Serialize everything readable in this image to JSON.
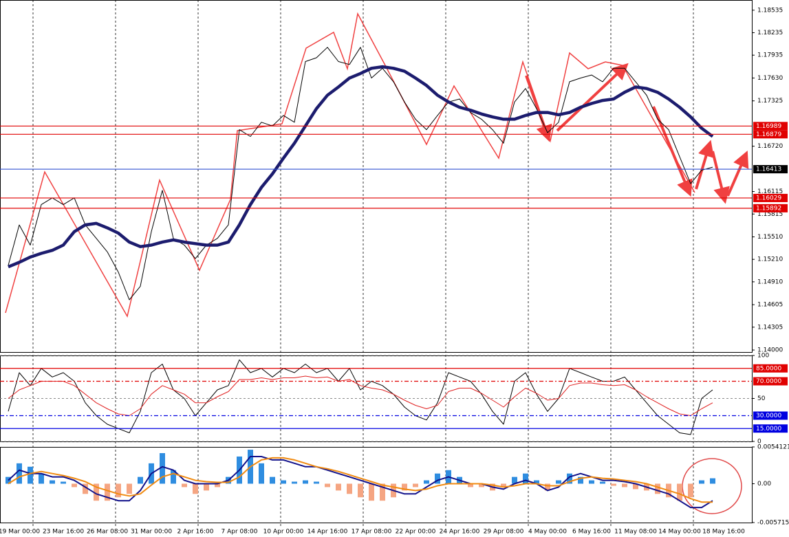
{
  "chart_data": [
    {
      "type": "line",
      "categories": [
        null,
        "19 Mar 00:00",
        null,
        null,
        null,
        "23 Mar 16:00",
        null,
        null,
        null,
        "26 Mar 08:00",
        null,
        null,
        null,
        "31 Mar 00:00",
        null,
        null,
        null,
        "2 Apr 16:00",
        null,
        null,
        null,
        "7 Apr 08:00",
        null,
        null,
        null,
        "10 Apr 00:00",
        null,
        null,
        null,
        "14 Apr 16:00",
        null,
        null,
        null,
        "17 Apr 08:00",
        null,
        null,
        null,
        "22 Apr 00:00",
        null,
        null,
        null,
        "24 Apr 16:00",
        null,
        null,
        null,
        "29 Apr 08:00",
        null,
        null,
        null,
        "4 May 00:00",
        null,
        null,
        null,
        "6 May 16:00",
        null,
        null,
        null,
        "11 May 08:00",
        null,
        null,
        null,
        "14 May 00:00",
        null,
        null,
        null,
        "18 May 16:00"
      ],
      "ylim": [
        1.13973,
        1.18671
      ],
      "yticks": [
        1.18535,
        1.18235,
        1.17935,
        {
          "value": 1.1763,
          "label": "1.17630"
        },
        1.17325,
        {
          "value": 1.1672,
          "label": "1.16720"
        },
        1.16115,
        1.15815,
        {
          "value": 1.1551,
          "label": "1.15510"
        },
        {
          "value": 1.1521,
          "label": "1.15210"
        },
        {
          "value": 1.1491,
          "label": "1.14910"
        },
        1.14605,
        1.14305,
        {
          "value": 1.14,
          "label": "1.14000"
        }
      ],
      "levels": [
        {
          "value": 1.16989,
          "color": "#e00000"
        },
        {
          "value": 1.16879,
          "color": "#e00000"
        },
        {
          "value": 1.16413,
          "color": "#3050d0",
          "label_color": "#000000"
        },
        {
          "value": 1.16029,
          "color": "#e00000"
        },
        {
          "value": 1.15892,
          "color": "#e00000"
        }
      ],
      "series": [
        {
          "color": "#000000",
          "values": [
            1.1513,
            1.1567,
            1.154,
            1.1594,
            1.1603,
            1.1594,
            1.1603,
            1.1567,
            1.1549,
            1.1531,
            1.1504,
            1.1467,
            1.1485,
            1.1558,
            1.1613,
            1.1549,
            1.154,
            1.1522,
            1.154,
            1.1549,
            1.1567,
            1.1694,
            1.1685,
            1.1704,
            1.1699,
            1.1713,
            1.1704,
            1.1785,
            1.179,
            1.1804,
            1.1785,
            1.1781,
            1.1804,
            1.1763,
            1.1776,
            1.1758,
            1.1731,
            1.1708,
            1.1694,
            1.1713,
            1.1731,
            1.1735,
            1.1717,
            1.1708,
            1.1694,
            1.1676,
            1.1731,
            1.1749,
            1.1722,
            1.169,
            1.1704,
            1.1758,
            1.1763,
            1.1767,
            1.1758,
            1.1776,
            1.1776,
            1.1758,
            1.174,
            1.1708,
            1.1694,
            1.1658,
            1.1622,
            1.164,
            1.1644,
            null
          ]
        },
        {
          "color": "#1c1c6e",
          "values": [
            1.1511,
            1.1517,
            1.1524,
            1.1529,
            1.1533,
            1.154,
            1.1558,
            1.1567,
            1.1569,
            1.1563,
            1.1556,
            1.1544,
            1.1538,
            1.154,
            1.1544,
            1.1547,
            1.1544,
            1.1542,
            1.154,
            1.154,
            1.1544,
            1.1567,
            1.1594,
            1.1617,
            1.1635,
            1.1656,
            1.1676,
            1.1699,
            1.1722,
            1.174,
            1.1751,
            1.1763,
            1.1769,
            1.1776,
            1.1778,
            1.1776,
            1.1772,
            1.1763,
            1.1753,
            1.174,
            1.1731,
            1.1724,
            1.172,
            1.1715,
            1.1711,
            1.1708,
            1.1708,
            1.1713,
            1.1717,
            1.1717,
            1.1714,
            1.1717,
            1.1724,
            1.1729,
            1.1733,
            1.1735,
            1.1744,
            1.1751,
            1.1749,
            1.1744,
            1.1735,
            1.1724,
            1.1711,
            1.1696,
            1.1685,
            null
          ]
        }
      ]
    },
    {
      "type": "line",
      "ylim": [
        0,
        100
      ],
      "yticks": [
        100,
        50,
        0
      ],
      "grid": true,
      "levels": [
        {
          "value": 85,
          "label": "85.0000",
          "color": "#e00000",
          "style": "solid"
        },
        {
          "value": 70,
          "label": "70.0000",
          "color": "#e00000",
          "style": "dashdot"
        },
        {
          "value": 30,
          "label": "30.0000",
          "color": "#0000e0",
          "style": "dashdot"
        },
        {
          "value": 15,
          "label": "15.0000",
          "color": "#0000e0",
          "style": "solid"
        }
      ],
      "series": [
        {
          "color": "#000000",
          "values": [
            35,
            80,
            65,
            85,
            75,
            80,
            70,
            45,
            30,
            20,
            15,
            10,
            35,
            80,
            90,
            60,
            50,
            30,
            45,
            60,
            65,
            95,
            80,
            85,
            75,
            85,
            80,
            90,
            80,
            85,
            70,
            85,
            60,
            70,
            65,
            55,
            40,
            30,
            25,
            45,
            80,
            75,
            70,
            55,
            35,
            20,
            70,
            80,
            55,
            35,
            50,
            85,
            80,
            75,
            70,
            70,
            75,
            60,
            45,
            30,
            20,
            10,
            8,
            50,
            60,
            null
          ]
        },
        {
          "color": "#e02020",
          "values": [
            50,
            60,
            65,
            70,
            70,
            70,
            65,
            55,
            45,
            38,
            32,
            30,
            38,
            55,
            65,
            60,
            55,
            45,
            45,
            52,
            58,
            72,
            72,
            74,
            72,
            74,
            74,
            76,
            74,
            75,
            70,
            72,
            65,
            62,
            60,
            55,
            48,
            42,
            38,
            42,
            58,
            62,
            62,
            56,
            48,
            40,
            52,
            62,
            56,
            48,
            50,
            65,
            68,
            68,
            66,
            65,
            66,
            60,
            52,
            45,
            38,
            32,
            30,
            38,
            45,
            null
          ]
        }
      ]
    },
    {
      "type": "combo",
      "ylim": [
        -0.0057154,
        0.0054121
      ],
      "yticks": [
        0.0054121,
        {
          "value": 0,
          "label": "0.00"
        },
        -0.0057154
      ],
      "series": [
        {
          "type": "bar",
          "color": "#2f8de0",
          "negative_color": "#f5a582",
          "values": [
            0.001,
            0.003,
            0.0025,
            0.0015,
            0.0005,
            0.0003,
            -0.0005,
            -0.0015,
            -0.0025,
            -0.0025,
            -0.002,
            -0.0015,
            0.001,
            0.003,
            0.0045,
            0.002,
            -0.0005,
            -0.0015,
            -0.001,
            -0.0005,
            0.001,
            0.004,
            0.005,
            0.003,
            0.001,
            0.0005,
            0.0003,
            0.0005,
            0.0003,
            -0.0005,
            -0.001,
            -0.0015,
            -0.002,
            -0.0025,
            -0.0025,
            -0.002,
            -0.001,
            -0.0005,
            0.0005,
            0.0015,
            0.002,
            0.001,
            -0.0005,
            -0.0005,
            -0.001,
            -0.0005,
            0.001,
            0.0015,
            0.0005,
            -0.001,
            0.0005,
            0.0015,
            0.001,
            0.0005,
            0.0003,
            -0.0003,
            -0.0005,
            -0.0008,
            -0.001,
            -0.0015,
            -0.002,
            -0.0025,
            -0.002,
            0.0005,
            0.0008,
            null
          ]
        },
        {
          "type": "line",
          "color": "#10108a",
          "values": [
            0.0005,
            0.002,
            0.0015,
            0.0015,
            0.001,
            0.001,
            0.0005,
            -0.0005,
            -0.0015,
            -0.002,
            -0.0025,
            -0.0025,
            -0.001,
            0.0015,
            0.0025,
            0.002,
            0.0005,
            0,
            0,
            0,
            0.0005,
            0.002,
            0.004,
            0.004,
            0.0035,
            0.0035,
            0.003,
            0.0025,
            0.0025,
            0.002,
            0.0015,
            0.001,
            0.0005,
            0,
            -0.0005,
            -0.001,
            -0.0015,
            -0.0015,
            -0.0005,
            0.0005,
            0.001,
            0.0005,
            0,
            0,
            -0.0005,
            -0.0008,
            0,
            0.0005,
            0,
            -0.001,
            -0.0005,
            0.001,
            0.0015,
            0.001,
            0.0005,
            0.0005,
            0.0003,
            0,
            -0.0005,
            -0.001,
            -0.0015,
            -0.0025,
            -0.0035,
            -0.0035,
            -0.0025,
            null
          ]
        },
        {
          "type": "line",
          "color": "#f08a10",
          "values": [
            0,
            0.001,
            0.0015,
            0.0018,
            0.0015,
            0.0012,
            0.0008,
            0.0003,
            -0.0005,
            -0.001,
            -0.0015,
            -0.0018,
            -0.0015,
            -0.0002,
            0.001,
            0.0015,
            0.001,
            0.0005,
            0.0003,
            0.0002,
            0.0002,
            0.001,
            0.0025,
            0.0035,
            0.0038,
            0.0038,
            0.0035,
            0.003,
            0.0025,
            0.0022,
            0.0018,
            0.0013,
            0.0008,
            0.0003,
            -0.0002,
            -0.0005,
            -0.0008,
            -0.001,
            -0.0008,
            -0.0003,
            0,
            0,
            0,
            0,
            -0.0002,
            -0.0005,
            -0.0003,
            0,
            0,
            -0.0003,
            -0.0003,
            0.0003,
            0.0008,
            0.001,
            0.0008,
            0.0007,
            0.0005,
            0.0003,
            0,
            -0.0005,
            -0.001,
            -0.0015,
            -0.0022,
            -0.0027,
            -0.0027,
            null
          ]
        }
      ]
    }
  ]
}
